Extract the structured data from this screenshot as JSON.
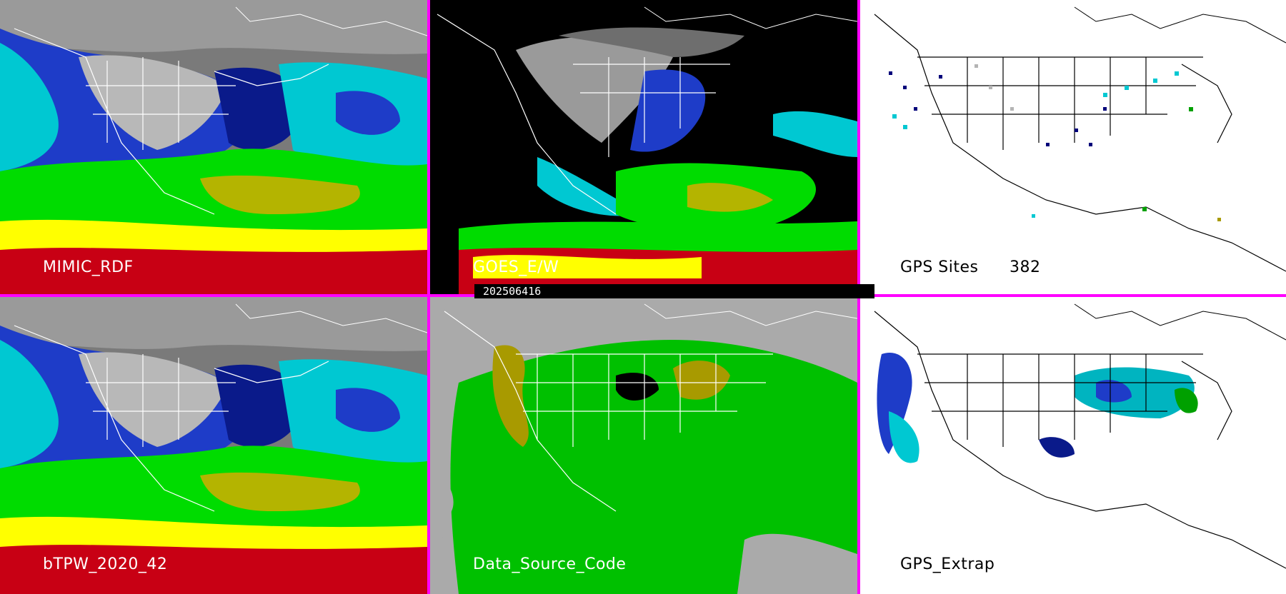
{
  "panels": {
    "mimic_rdf": {
      "label": "MIMIC_RDF"
    },
    "goes": {
      "label": "GOES_E/W"
    },
    "gps_sites": {
      "label": "GPS Sites",
      "count": "382"
    },
    "btpw": {
      "label": "bTPW_2020_42"
    },
    "data_source": {
      "label": "Data_Source_Code"
    },
    "gps_extrap": {
      "label": "GPS_Extrap"
    }
  },
  "timestamp": "202506416",
  "colors": {
    "divider": "#ff00ff",
    "tpw_scale": [
      "#6e6e6e",
      "#9a9a9a",
      "#c8c8c8",
      "#00006e",
      "#1e3cc8",
      "#00c8d2",
      "#00ff64",
      "#00dc00",
      "#b4b400",
      "#dcc800",
      "#ffff00",
      "#c80014",
      "#ff0000"
    ],
    "data_source_bg": "#aaaaaa",
    "data_source_green": "#00c000",
    "data_source_olive": "#a89a00"
  }
}
